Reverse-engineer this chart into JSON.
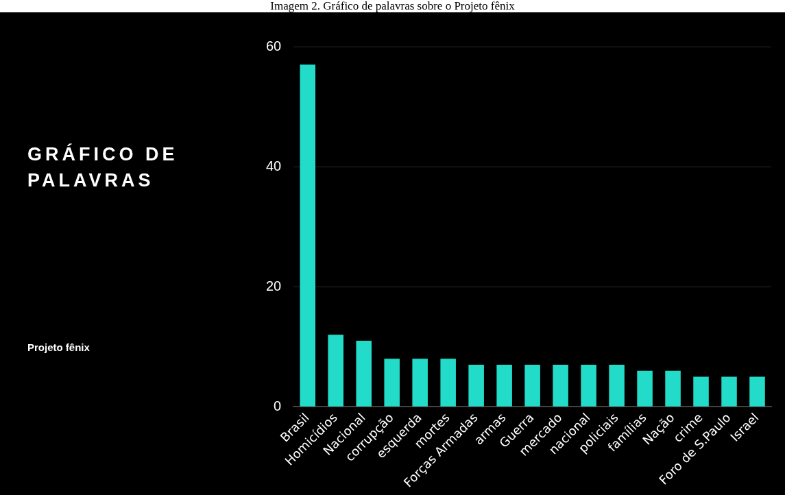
{
  "chart_data": {
    "type": "bar",
    "title": "GRÁFICO DE PALAVRAS",
    "subtitle": "Projeto fênix",
    "annotations": [
      "Imagem 2. Gráfico de palavras sobre o Projeto fênix"
    ],
    "categories": [
      "Brasil",
      "Homicídios",
      "Nacional",
      "corrupção",
      "esquerda",
      "mortes",
      "Forças Armadas",
      "armas",
      "Guerra",
      "mercado",
      "nacional",
      "policiais",
      "famílias",
      "Nação",
      "crime",
      "Foro de S.Paulo",
      "Israel"
    ],
    "values": [
      57,
      12,
      11,
      8,
      8,
      8,
      7,
      7,
      7,
      7,
      7,
      7,
      6,
      6,
      5,
      5,
      5
    ],
    "color": "#22dbc8",
    "ylim": [
      0,
      60
    ],
    "yticks": [
      0,
      20,
      40,
      60
    ],
    "grid": "y",
    "legend": false
  }
}
